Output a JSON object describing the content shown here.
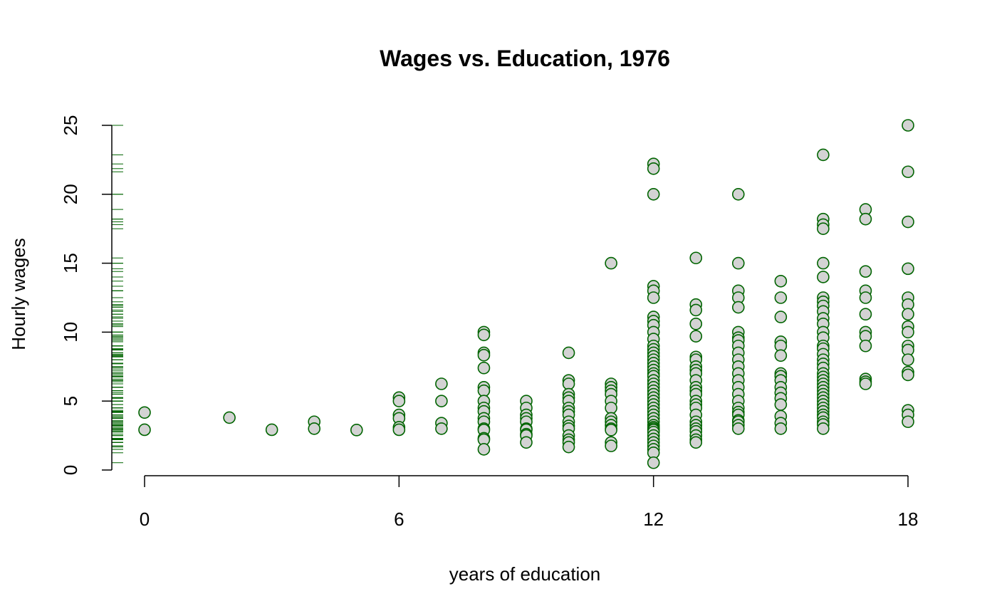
{
  "chart_data": {
    "type": "scatter",
    "title": "Wages vs. Education, 1976",
    "xlabel": "years of education",
    "ylabel": "Hourly wages",
    "xlim": [
      -0.6,
      18.6
    ],
    "ylim": [
      0,
      25
    ],
    "x_ticks": [
      0,
      6,
      12,
      18
    ],
    "x_tick_labels": [
      "0",
      "6",
      "12",
      "18"
    ],
    "y_ticks": [
      0,
      5,
      10,
      15,
      20,
      25
    ],
    "y_tick_labels": [
      "0",
      "5",
      "10",
      "15",
      "20",
      "25"
    ],
    "grid": false,
    "legend": "none",
    "rug": "y-axis",
    "colors": {
      "point_fill": "#d3d3d3",
      "point_stroke": "#006400",
      "rug": "#006400",
      "axis": "#000000"
    },
    "points": [
      [
        0,
        4.17
      ],
      [
        0,
        2.92
      ],
      [
        2,
        3.8
      ],
      [
        3,
        2.92
      ],
      [
        4,
        3.5
      ],
      [
        4,
        3.0
      ],
      [
        5,
        2.9
      ],
      [
        6,
        5.25
      ],
      [
        6,
        5.0
      ],
      [
        6,
        4.0
      ],
      [
        6,
        3.75
      ],
      [
        6,
        3.1
      ],
      [
        6,
        2.92
      ],
      [
        7,
        6.25
      ],
      [
        7,
        5.0
      ],
      [
        7,
        3.4
      ],
      [
        7,
        3.0
      ],
      [
        8,
        10.0
      ],
      [
        8,
        9.8
      ],
      [
        8,
        8.5
      ],
      [
        8,
        8.33
      ],
      [
        8,
        7.4
      ],
      [
        8,
        6.0
      ],
      [
        8,
        5.75
      ],
      [
        8,
        5.0
      ],
      [
        8,
        4.5
      ],
      [
        8,
        4.25
      ],
      [
        8,
        3.75
      ],
      [
        8,
        3.5
      ],
      [
        8,
        3.0
      ],
      [
        8,
        2.9
      ],
      [
        8,
        2.3
      ],
      [
        8,
        2.2
      ],
      [
        8,
        1.5
      ],
      [
        9,
        5.0
      ],
      [
        9,
        4.5
      ],
      [
        9,
        4.0
      ],
      [
        9,
        3.75
      ],
      [
        9,
        3.5
      ],
      [
        9,
        3.0
      ],
      [
        9,
        2.92
      ],
      [
        9,
        2.6
      ],
      [
        9,
        2.5
      ],
      [
        9,
        2.0
      ],
      [
        10,
        8.5
      ],
      [
        10,
        6.5
      ],
      [
        10,
        6.25
      ],
      [
        10,
        5.5
      ],
      [
        10,
        5.25
      ],
      [
        10,
        5.0
      ],
      [
        10,
        4.5
      ],
      [
        10,
        4.25
      ],
      [
        10,
        4.0
      ],
      [
        10,
        3.5
      ],
      [
        10,
        3.2
      ],
      [
        10,
        3.0
      ],
      [
        10,
        2.5
      ],
      [
        10,
        2.2
      ],
      [
        10,
        2.0
      ],
      [
        10,
        1.67
      ],
      [
        11,
        15.0
      ],
      [
        11,
        6.25
      ],
      [
        11,
        6.0
      ],
      [
        11,
        5.75
      ],
      [
        11,
        5.5
      ],
      [
        11,
        5.0
      ],
      [
        11,
        4.5
      ],
      [
        11,
        3.75
      ],
      [
        11,
        3.5
      ],
      [
        11,
        3.25
      ],
      [
        11,
        3.0
      ],
      [
        11,
        2.9
      ],
      [
        11,
        2.0
      ],
      [
        11,
        1.75
      ],
      [
        12,
        22.2
      ],
      [
        12,
        21.86
      ],
      [
        12,
        20.0
      ],
      [
        12,
        13.33
      ],
      [
        12,
        13.0
      ],
      [
        12,
        12.5
      ],
      [
        12,
        11.1
      ],
      [
        12,
        10.8
      ],
      [
        12,
        10.5
      ],
      [
        12,
        10.0
      ],
      [
        12,
        9.5
      ],
      [
        12,
        9.0
      ],
      [
        12,
        8.75
      ],
      [
        12,
        8.5
      ],
      [
        12,
        8.25
      ],
      [
        12,
        8.0
      ],
      [
        12,
        7.75
      ],
      [
        12,
        7.5
      ],
      [
        12,
        7.25
      ],
      [
        12,
        7.0
      ],
      [
        12,
        6.8
      ],
      [
        12,
        6.5
      ],
      [
        12,
        6.25
      ],
      [
        12,
        6.0
      ],
      [
        12,
        5.75
      ],
      [
        12,
        5.5
      ],
      [
        12,
        5.25
      ],
      [
        12,
        5.0
      ],
      [
        12,
        4.75
      ],
      [
        12,
        4.5
      ],
      [
        12,
        4.25
      ],
      [
        12,
        4.0
      ],
      [
        12,
        3.75
      ],
      [
        12,
        3.5
      ],
      [
        12,
        3.25
      ],
      [
        12,
        3.1
      ],
      [
        12,
        3.0
      ],
      [
        12,
        2.9
      ],
      [
        12,
        2.75
      ],
      [
        12,
        2.5
      ],
      [
        12,
        2.25
      ],
      [
        12,
        2.0
      ],
      [
        12,
        1.75
      ],
      [
        12,
        1.5
      ],
      [
        12,
        1.25
      ],
      [
        12,
        0.53
      ],
      [
        13,
        15.38
      ],
      [
        13,
        12.0
      ],
      [
        13,
        11.6
      ],
      [
        13,
        10.6
      ],
      [
        13,
        9.7
      ],
      [
        13,
        8.2
      ],
      [
        13,
        8.0
      ],
      [
        13,
        7.5
      ],
      [
        13,
        7.25
      ],
      [
        13,
        7.0
      ],
      [
        13,
        6.5
      ],
      [
        13,
        6.0
      ],
      [
        13,
        5.75
      ],
      [
        13,
        5.5
      ],
      [
        13,
        5.0
      ],
      [
        13,
        4.75
      ],
      [
        13,
        4.5
      ],
      [
        13,
        4.0
      ],
      [
        13,
        3.5
      ],
      [
        13,
        3.25
      ],
      [
        13,
        3.0
      ],
      [
        13,
        2.8
      ],
      [
        13,
        2.5
      ],
      [
        13,
        2.2
      ],
      [
        13,
        2.0
      ],
      [
        14,
        20.0
      ],
      [
        14,
        15.0
      ],
      [
        14,
        13.0
      ],
      [
        14,
        12.5
      ],
      [
        14,
        11.8
      ],
      [
        14,
        10.0
      ],
      [
        14,
        9.6
      ],
      [
        14,
        9.4
      ],
      [
        14,
        9.0
      ],
      [
        14,
        8.5
      ],
      [
        14,
        8.0
      ],
      [
        14,
        7.5
      ],
      [
        14,
        7.0
      ],
      [
        14,
        6.5
      ],
      [
        14,
        6.0
      ],
      [
        14,
        5.5
      ],
      [
        14,
        5.0
      ],
      [
        14,
        4.5
      ],
      [
        14,
        4.2
      ],
      [
        14,
        4.0
      ],
      [
        14,
        3.6
      ],
      [
        14,
        3.5
      ],
      [
        14,
        3.25
      ],
      [
        14,
        3.0
      ],
      [
        15,
        13.7
      ],
      [
        15,
        12.5
      ],
      [
        15,
        11.1
      ],
      [
        15,
        9.3
      ],
      [
        15,
        9.0
      ],
      [
        15,
        8.3
      ],
      [
        15,
        7.0
      ],
      [
        15,
        6.8
      ],
      [
        15,
        6.5
      ],
      [
        15,
        6.0
      ],
      [
        15,
        5.6
      ],
      [
        15,
        5.2
      ],
      [
        15,
        4.75
      ],
      [
        15,
        3.9
      ],
      [
        15,
        3.4
      ],
      [
        15,
        3.0
      ],
      [
        16,
        22.86
      ],
      [
        16,
        18.2
      ],
      [
        16,
        17.8
      ],
      [
        16,
        17.5
      ],
      [
        16,
        15.0
      ],
      [
        16,
        14.0
      ],
      [
        16,
        12.5
      ],
      [
        16,
        12.2
      ],
      [
        16,
        11.9
      ],
      [
        16,
        11.5
      ],
      [
        16,
        11.0
      ],
      [
        16,
        10.6
      ],
      [
        16,
        10.0
      ],
      [
        16,
        9.6
      ],
      [
        16,
        9.0
      ],
      [
        16,
        8.8
      ],
      [
        16,
        8.4
      ],
      [
        16,
        8.0
      ],
      [
        16,
        7.7
      ],
      [
        16,
        7.4
      ],
      [
        16,
        7.0
      ],
      [
        16,
        6.75
      ],
      [
        16,
        6.5
      ],
      [
        16,
        6.25
      ],
      [
        16,
        6.0
      ],
      [
        16,
        5.75
      ],
      [
        16,
        5.5
      ],
      [
        16,
        5.25
      ],
      [
        16,
        5.0
      ],
      [
        16,
        4.75
      ],
      [
        16,
        4.5
      ],
      [
        16,
        4.25
      ],
      [
        16,
        4.0
      ],
      [
        16,
        3.8
      ],
      [
        16,
        3.5
      ],
      [
        16,
        3.3
      ],
      [
        16,
        3.0
      ],
      [
        17,
        18.9
      ],
      [
        17,
        18.2
      ],
      [
        17,
        14.4
      ],
      [
        17,
        13.0
      ],
      [
        17,
        12.5
      ],
      [
        17,
        11.3
      ],
      [
        17,
        10.0
      ],
      [
        17,
        9.7
      ],
      [
        17,
        9.0
      ],
      [
        17,
        6.6
      ],
      [
        17,
        6.4
      ],
      [
        17,
        6.25
      ],
      [
        18,
        25.0
      ],
      [
        18,
        21.63
      ],
      [
        18,
        18.0
      ],
      [
        18,
        14.6
      ],
      [
        18,
        12.5
      ],
      [
        18,
        12.0
      ],
      [
        18,
        11.3
      ],
      [
        18,
        10.4
      ],
      [
        18,
        10.0
      ],
      [
        18,
        9.0
      ],
      [
        18,
        8.7
      ],
      [
        18,
        8.0
      ],
      [
        18,
        7.1
      ],
      [
        18,
        6.9
      ],
      [
        18,
        4.33
      ],
      [
        18,
        4.0
      ],
      [
        18,
        3.5
      ]
    ]
  }
}
